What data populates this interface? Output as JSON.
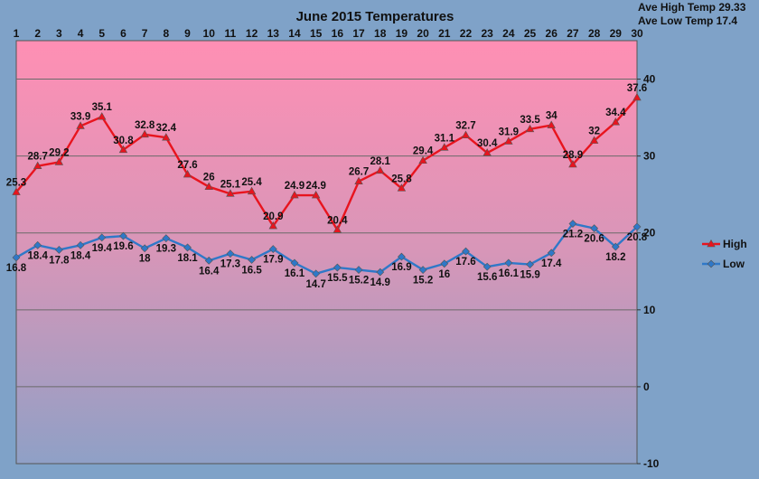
{
  "chart_data": {
    "type": "line",
    "title": "June 2015 Temperatures",
    "x": [
      1,
      2,
      3,
      4,
      5,
      6,
      7,
      8,
      9,
      10,
      11,
      12,
      13,
      14,
      15,
      16,
      17,
      18,
      19,
      20,
      21,
      22,
      23,
      24,
      25,
      26,
      27,
      28,
      29,
      30
    ],
    "x_tick_labels": [
      "1",
      "2",
      "3",
      "4",
      "5",
      "6",
      "7",
      "8",
      "9",
      "10",
      "11",
      "12",
      "13",
      "14",
      "15",
      "16",
      "17",
      "18",
      "19",
      "20",
      "21",
      "22",
      "23",
      "24",
      "25",
      "26",
      "27",
      "28",
      "29",
      "30"
    ],
    "x_axis_position": "top",
    "ylim": [
      -10,
      45
    ],
    "y_ticks": [
      -10,
      0,
      10,
      20,
      30,
      40
    ],
    "y_tick_labels": [
      "-10",
      "0",
      "10",
      "20",
      "30",
      "40"
    ],
    "y_axis_position": "right",
    "grid": true,
    "legend_position": "right",
    "series": [
      {
        "name": "High",
        "color": "#e8141e",
        "marker": "triangle",
        "values": [
          25.3,
          28.7,
          29.2,
          33.9,
          35.1,
          30.8,
          32.8,
          32.4,
          27.6,
          26,
          25.1,
          25.4,
          20.9,
          24.9,
          24.9,
          20.4,
          26.7,
          28.1,
          25.8,
          29.4,
          31.1,
          32.7,
          30.4,
          31.9,
          33.5,
          34,
          28.9,
          32,
          34.4,
          37.6
        ],
        "labels": [
          "25.3",
          "28.7",
          "29.2",
          "33.9",
          "35.1",
          "30.8",
          "32.8",
          "32.4",
          "27.6",
          "26",
          "25.1",
          "25.4",
          "20.9",
          "24.9",
          "24.9",
          "20.4",
          "26.7",
          "28.1",
          "25.8",
          "29.4",
          "31.1",
          "32.7",
          "30.4",
          "31.9",
          "33.5",
          "34",
          "28.9",
          "32",
          "34.4",
          "37.6"
        ]
      },
      {
        "name": "Low",
        "color": "#2f78c8",
        "marker": "diamond",
        "values": [
          16.8,
          18.4,
          17.8,
          18.4,
          19.4,
          19.6,
          18,
          19.3,
          18.1,
          16.4,
          17.3,
          16.5,
          17.9,
          16.1,
          14.7,
          15.5,
          15.2,
          14.9,
          16.9,
          15.2,
          16,
          17.6,
          15.6,
          16.1,
          15.9,
          17.4,
          21.2,
          20.6,
          18.2,
          20.8
        ],
        "labels": [
          "16.8",
          "18.4",
          "17.8",
          "18.4",
          "19.4",
          "19.6",
          "18",
          "19.3",
          "18.1",
          "16.4",
          "17.3",
          "16.5",
          "17.9",
          "16.1",
          "14.7",
          "15.5",
          "15.2",
          "14.9",
          "16.9",
          "15.2",
          "16",
          "17.6",
          "15.6",
          "16.1",
          "15.9",
          "17.4",
          "21.2",
          "20.6",
          "18.2",
          "20.8"
        ]
      }
    ],
    "stats": {
      "ave_high": "Ave High Temp 29.33",
      "ave_low": "Ave Low Temp 17.4"
    }
  }
}
